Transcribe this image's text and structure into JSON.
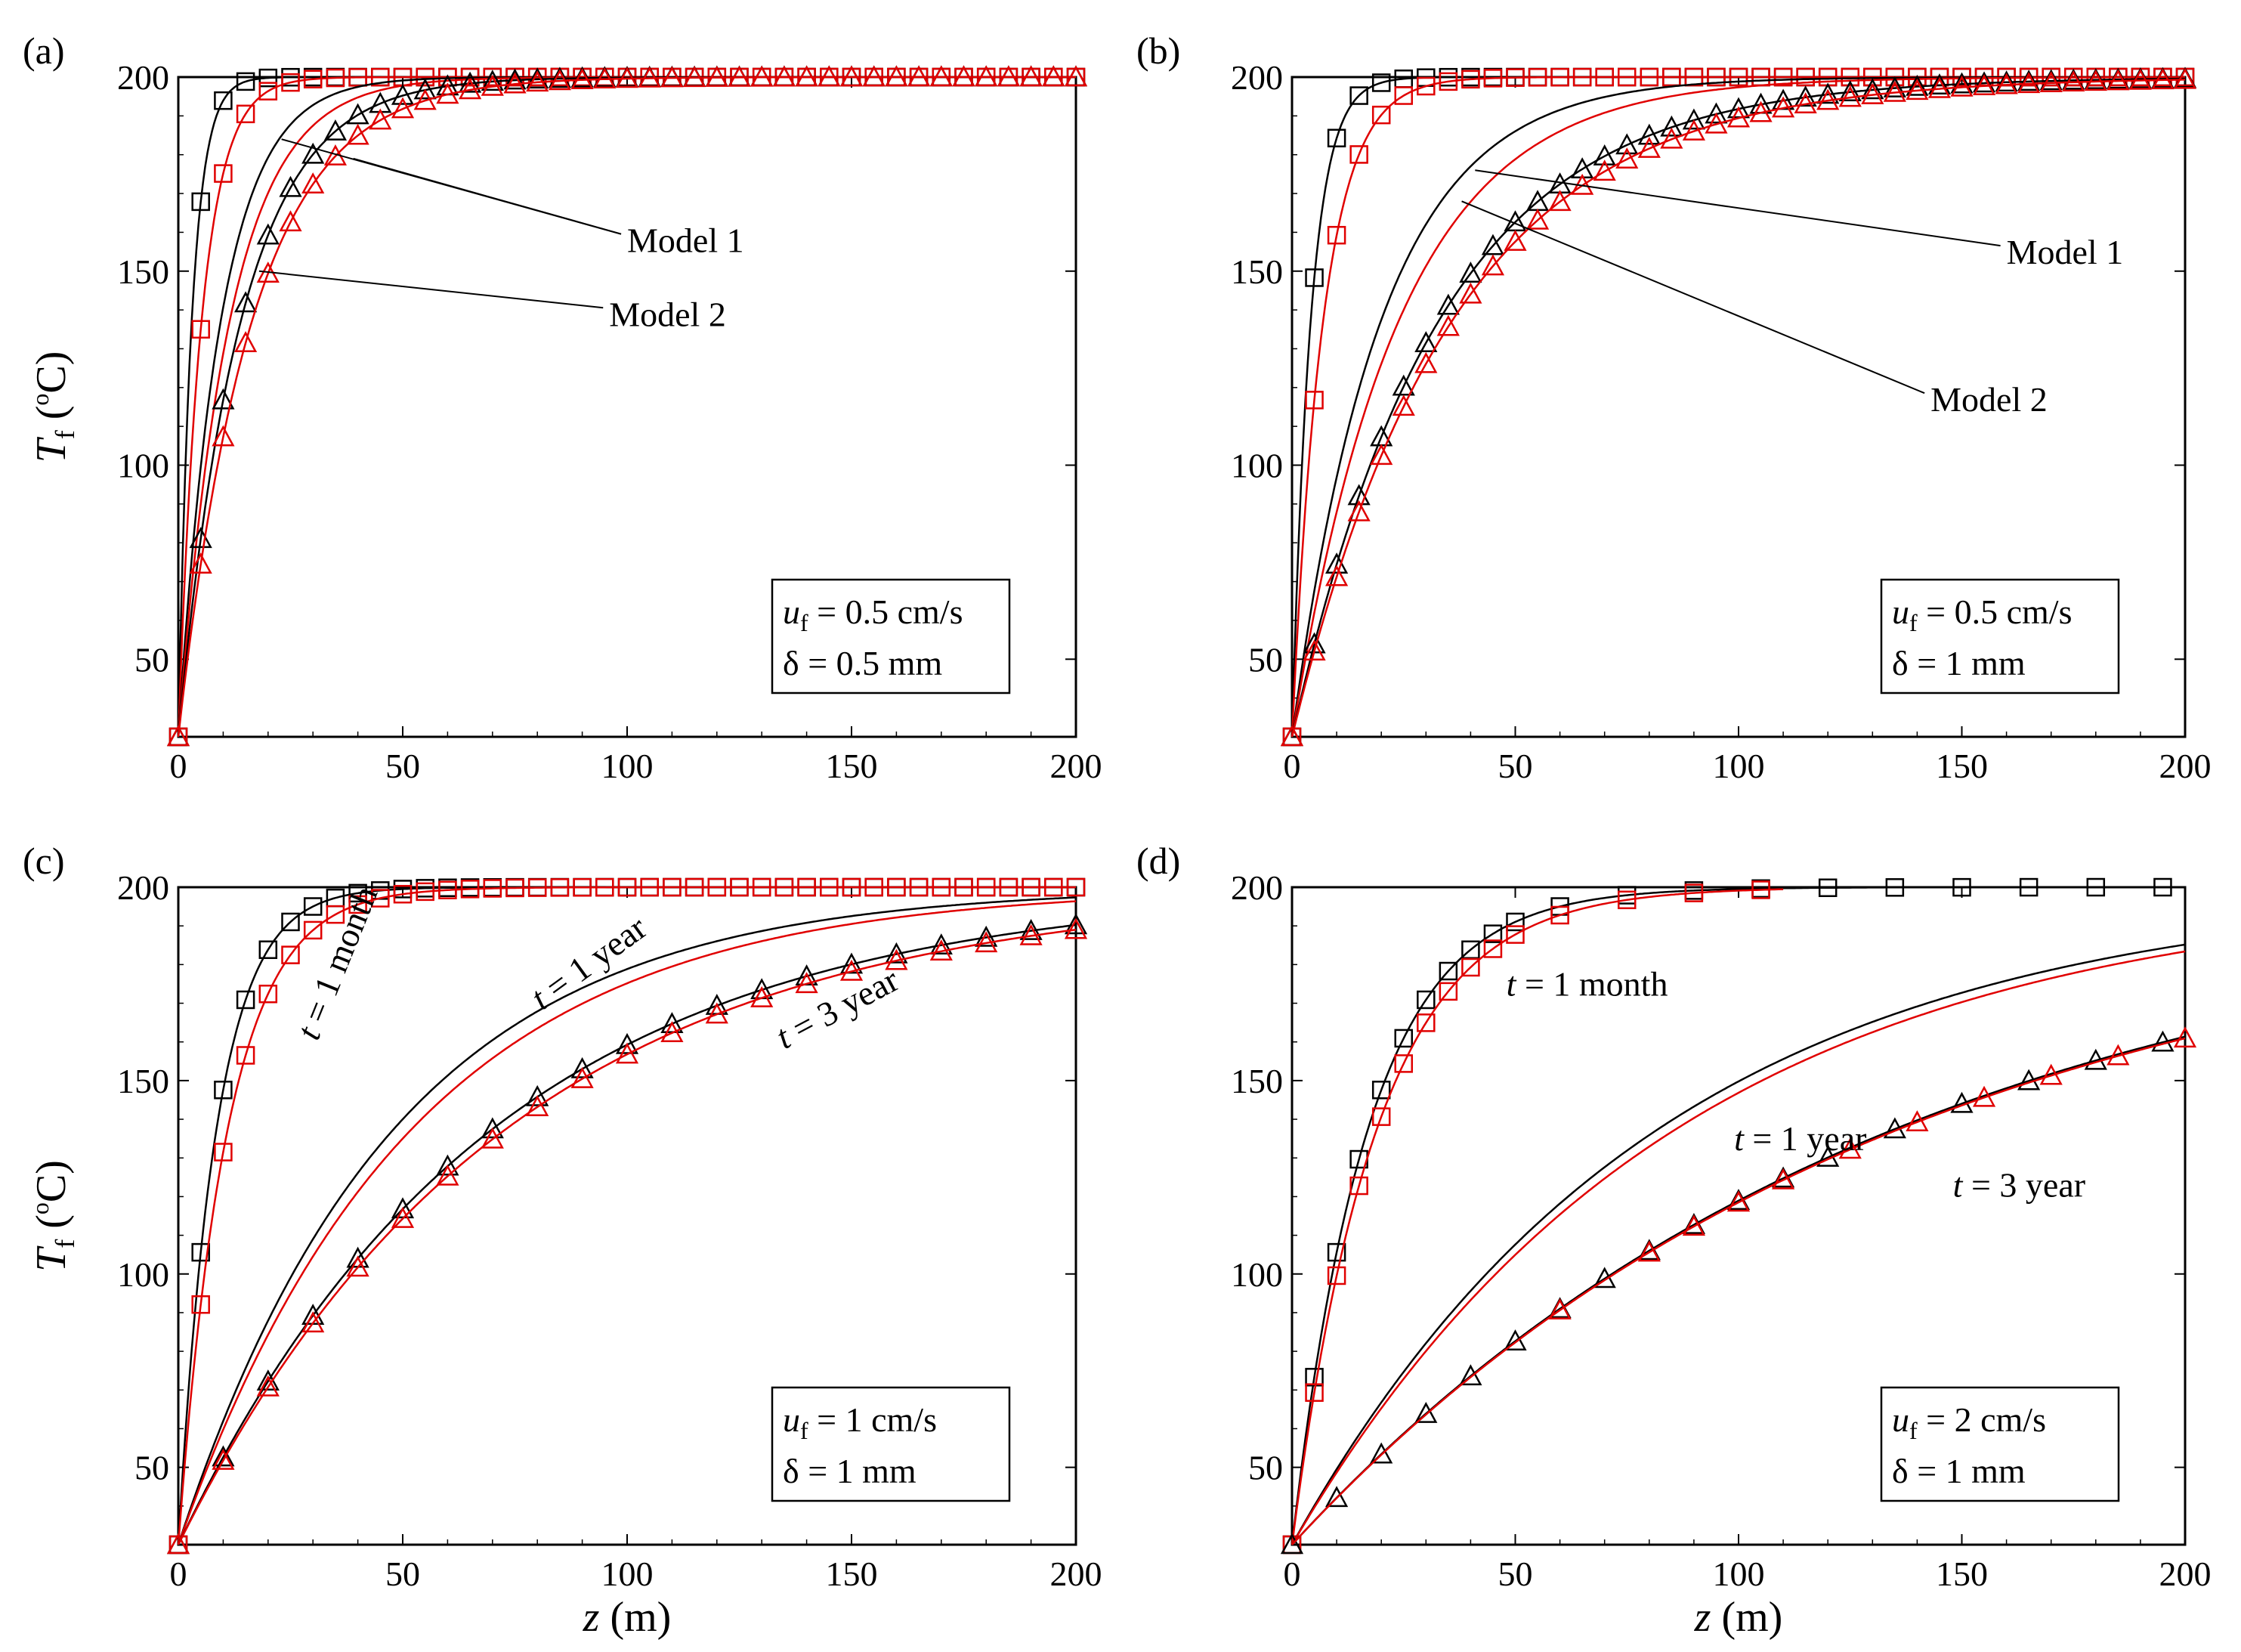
{
  "figure": {
    "y_axis_label_main": "T",
    "y_axis_label_sub": "f",
    "y_axis_label_unit_open": " (",
    "y_axis_label_unit_sup": "o",
    "y_axis_label_unit_close": "C)",
    "x_axis_label_var": "z",
    "x_axis_label_unit": " (m)"
  },
  "colors": {
    "series_a": "#000000",
    "series_b": "#e00000"
  },
  "icons": {
    "marker_1": "square-marker-icon",
    "marker_2": "triangle-marker-icon"
  },
  "chart_data": [
    {
      "panel_label": "(a)",
      "type": "line",
      "xlim": [
        0,
        200
      ],
      "ylim": [
        30,
        200
      ],
      "xticks": [
        0,
        50,
        100,
        150,
        200
      ],
      "yticks": [
        50,
        100,
        150,
        200
      ],
      "xtick_labels": [
        "0",
        "50",
        "100",
        "150",
        "200"
      ],
      "ytick_labels": [
        "50",
        "100",
        "150",
        "200"
      ],
      "show_xlabel": false,
      "show_ylabel": true,
      "box_line1_var": "u",
      "box_line1_sub": "f",
      "box_line1_val": " = 0.5 cm/s",
      "box_line2_sym": "δ",
      "box_line2_val": " = 0.5 mm",
      "annotations": [
        {
          "text": "Model 1",
          "text_x": 100,
          "text_y": 158,
          "targets": [
            [
              23,
              184
            ],
            [
              39,
              179
            ]
          ]
        },
        {
          "text": "Model 2",
          "text_x": 96,
          "text_y": 139,
          "targets": [
            [
              18,
              150
            ]
          ]
        }
      ],
      "curve_labels": [],
      "series": [
        {
          "color": "series_a",
          "marker": "square",
          "step": 5,
          "x0": 0,
          "y0": 30,
          "L": 3.0
        },
        {
          "color": "series_b",
          "marker": "square",
          "step": 5,
          "x0": 0,
          "y0": 30,
          "L": 5.2
        },
        {
          "color": "series_a",
          "marker": "none",
          "x0": 0,
          "y0": 30,
          "L": 9.5
        },
        {
          "color": "series_b",
          "marker": "none",
          "x0": 0,
          "y0": 30,
          "L": 11.5
        },
        {
          "color": "series_a",
          "marker": "triangle",
          "step": 5,
          "x0": 0,
          "y0": 30,
          "L": 14.0
        },
        {
          "color": "series_b",
          "marker": "triangle",
          "step": 5,
          "x0": 0,
          "y0": 30,
          "L": 16.5
        }
      ]
    },
    {
      "panel_label": "(b)",
      "type": "line",
      "xlim": [
        0,
        200
      ],
      "ylim": [
        30,
        200
      ],
      "xticks": [
        0,
        50,
        100,
        150,
        200
      ],
      "yticks": [
        50,
        100,
        150,
        200
      ],
      "xtick_labels": [
        "0",
        "50",
        "100",
        "150",
        "200"
      ],
      "ytick_labels": [
        "50",
        "100",
        "150",
        "200"
      ],
      "show_xlabel": false,
      "show_ylabel": false,
      "box_line1_var": "u",
      "box_line1_sub": "f",
      "box_line1_val": " = 0.5 cm/s",
      "box_line2_sym": "δ",
      "box_line2_val": " = 1 mm",
      "annotations": [
        {
          "text": "Model 1",
          "text_x": 160,
          "text_y": 155,
          "targets": [
            [
              41,
              176
            ]
          ]
        },
        {
          "text": "Model 2",
          "text_x": 143,
          "text_y": 117,
          "targets": [
            [
              38,
              168
            ]
          ]
        }
      ],
      "curve_labels": [],
      "series": [
        {
          "color": "series_a",
          "marker": "square",
          "step": 5,
          "x0": 0,
          "y0": 30,
          "L": 4.2
        },
        {
          "color": "series_b",
          "marker": "square",
          "step": 5,
          "x0": 0,
          "y0": 30,
          "L": 7.0
        },
        {
          "color": "series_a",
          "marker": "none",
          "x0": 0,
          "y0": 30,
          "L": 20.0
        },
        {
          "color": "series_b",
          "marker": "none",
          "x0": 0,
          "y0": 30,
          "L": 24.0
        },
        {
          "color": "series_a",
          "marker": "triangle",
          "step": 5,
          "x0": 0,
          "y0": 30,
          "L": 33.0
        },
        {
          "color": "series_b",
          "marker": "triangle",
          "step": 5,
          "x0": 0,
          "y0": 30,
          "L": 36.0
        }
      ]
    },
    {
      "panel_label": "(c)",
      "type": "line",
      "xlim": [
        0,
        200
      ],
      "ylim": [
        30,
        200
      ],
      "xticks": [
        0,
        50,
        100,
        150,
        200
      ],
      "yticks": [
        50,
        100,
        150,
        200
      ],
      "xtick_labels": [
        "0",
        "50",
        "100",
        "150",
        "200"
      ],
      "ytick_labels": [
        "50",
        "100",
        "150",
        "200"
      ],
      "show_xlabel": true,
      "show_ylabel": true,
      "box_line1_var": "u",
      "box_line1_sub": "f",
      "box_line1_val": " = 1 cm/s",
      "box_line2_sym": "δ",
      "box_line2_val": " = 1 mm",
      "annotations": [],
      "curve_labels": [
        {
          "var": "t",
          "text": " = 1 month",
          "x": 31,
          "y": 160,
          "angle": -68
        },
        {
          "var": "t",
          "text": " = 1 year",
          "x": 81,
          "y": 168,
          "angle": -36
        },
        {
          "var": "t",
          "text": " = 3 year",
          "x": 135,
          "y": 158,
          "angle": -28
        }
      ],
      "series": [
        {
          "color": "series_a",
          "marker": "square",
          "step": 5,
          "x0": 0,
          "y0": 30,
          "L": 8.5
        },
        {
          "color": "series_b",
          "marker": "square",
          "step": 5,
          "x0": 0,
          "y0": 30,
          "L": 11.0
        },
        {
          "color": "series_a",
          "marker": "none",
          "x0": 0,
          "y0": 30,
          "L": 48.0
        },
        {
          "color": "series_b",
          "marker": "none",
          "x0": 0,
          "y0": 30,
          "L": 52.0
        },
        {
          "color": "series_a",
          "marker": "triangle",
          "step": 10,
          "x0": 0,
          "y0": 30,
          "L": 70.0
        },
        {
          "color": "series_b",
          "marker": "triangle",
          "step": 10,
          "x0": 0,
          "y0": 30,
          "L": 73.0
        }
      ]
    },
    {
      "panel_label": "(d)",
      "type": "line",
      "xlim": [
        0,
        200
      ],
      "ylim": [
        30,
        200
      ],
      "xticks": [
        0,
        50,
        100,
        150,
        200
      ],
      "yticks": [
        50,
        100,
        150,
        200
      ],
      "xtick_labels": [
        "0",
        "50",
        "100",
        "150",
        "200"
      ],
      "ytick_labels": [
        "50",
        "100",
        "150",
        "200"
      ],
      "show_xlabel": true,
      "show_ylabel": false,
      "box_line1_var": "u",
      "box_line1_sub": "f",
      "box_line1_val": " = 2 cm/s",
      "box_line2_sym": "δ",
      "box_line2_val": " = 1 mm",
      "annotations": [],
      "curve_labels": [
        {
          "var": "t",
          "text": " = 1 month",
          "x": 48,
          "y": 172,
          "angle": 0
        },
        {
          "var": "t",
          "text": " = 1 year",
          "x": 99,
          "y": 132,
          "angle": 0
        },
        {
          "var": "t",
          "text": " = 3 year",
          "x": 148,
          "y": 120,
          "angle": 0
        }
      ],
      "series": [
        {
          "color": "series_a",
          "marker": "square",
          "step": 5,
          "x0": 0,
          "y0": 30,
          "L": 17.0,
          "marker_max_x": 45,
          "marker_extra": [
            50,
            60,
            75,
            90,
            105,
            120,
            135,
            150,
            165,
            180,
            195
          ]
        },
        {
          "color": "series_b",
          "marker": "square",
          "step": 5,
          "x0": 0,
          "y0": 30,
          "L": 19.0,
          "marker_max_x": 45,
          "marker_extra": [
            50,
            60,
            75,
            90,
            105
          ],
          "x_end": 110
        },
        {
          "color": "series_a",
          "marker": "none",
          "x0": 0,
          "y0": 30,
          "L": 82.0
        },
        {
          "color": "series_b",
          "marker": "none",
          "x0": 0,
          "y0": 30,
          "L": 86.0
        },
        {
          "color": "series_a",
          "marker": "triangle",
          "step": 10,
          "x0": 0,
          "y0": 30,
          "L": 135.0,
          "marker_extra_only": [
            0,
            10,
            20,
            30,
            40,
            50,
            60,
            70,
            80,
            90,
            100,
            110,
            120,
            135,
            150,
            165,
            180,
            195
          ]
        },
        {
          "color": "series_b",
          "marker": "triangle",
          "step": 10,
          "x0": 0,
          "y0": 30,
          "L": 136.0,
          "marker_extra_only": [
            60,
            80,
            90,
            100,
            110,
            125,
            140,
            155,
            170,
            185,
            200
          ]
        }
      ]
    }
  ]
}
